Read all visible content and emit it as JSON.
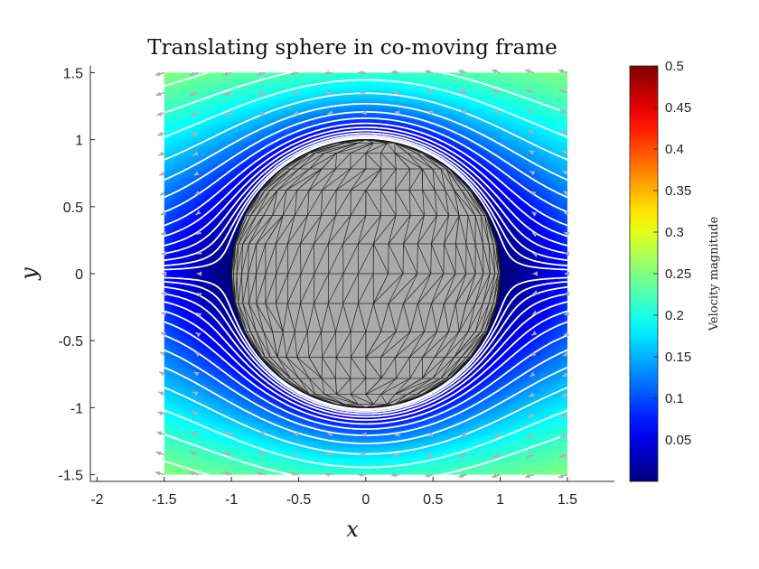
{
  "chart_data": {
    "type": "heatmap",
    "title": "Translating sphere in co-moving frame",
    "xlabel": "x",
    "ylabel": "y",
    "xlim": [
      -2.05,
      1.85
    ],
    "ylim": [
      -1.55,
      1.55
    ],
    "x_ticks": [
      "-2",
      "-1.5",
      "-1",
      "-0.5",
      "0",
      "0.5",
      "1",
      "1.5"
    ],
    "y_ticks": [
      "-1.5",
      "-1",
      "-0.5",
      "0",
      "0.5",
      "1",
      "1.5"
    ],
    "field_extent": {
      "x": [
        -1.5,
        1.5
      ],
      "y": [
        -1.5,
        1.5
      ]
    },
    "sphere": {
      "center": [
        0,
        0
      ],
      "radius": 1
    },
    "far_field_speed": 0.5,
    "colormap": "jet",
    "colorbar": {
      "label": "Velocity magnitude",
      "range": [
        0,
        0.5
      ],
      "ticks": [
        "0.05",
        "0.1",
        "0.15",
        "0.2",
        "0.25",
        "0.3",
        "0.35",
        "0.4",
        "0.45",
        "0.5"
      ]
    },
    "streamline_color": "#ffffff",
    "arrow_color": "#b0b0b0",
    "sphere_color": "#aaaaaa",
    "grid": false
  }
}
